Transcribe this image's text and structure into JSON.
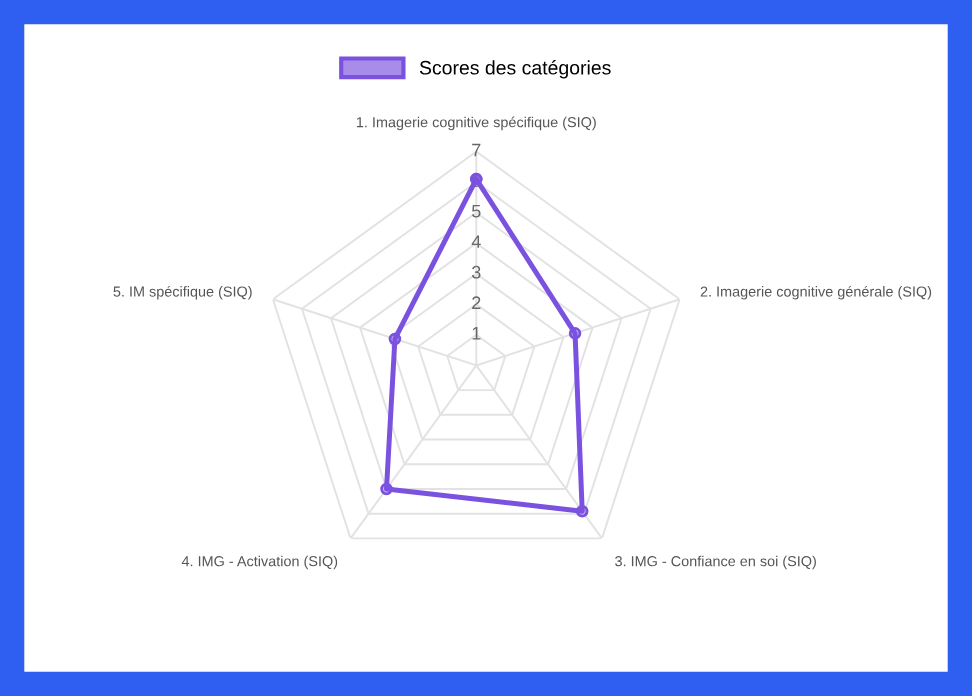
{
  "chart_data": {
    "type": "radar",
    "categories": [
      "1. Imagerie cognitive spécifique (SIQ)",
      "2. Imagerie cognitive générale (SIQ)",
      "3. IMG - Confiance en soi (SIQ)",
      "4. IMG - Activation (SIQ)",
      "5. IM spécifique (SIQ)"
    ],
    "series": [
      {
        "name": "Scores des catégories",
        "color": "#7b52e0",
        "values": [
          6.1,
          3.4,
          5.9,
          5.0,
          2.8
        ]
      }
    ],
    "ylim": [
      0,
      7
    ],
    "yticks": [
      1,
      2,
      3,
      4,
      5,
      6,
      7
    ],
    "grid": true,
    "legend": "top",
    "marker": "circle"
  }
}
